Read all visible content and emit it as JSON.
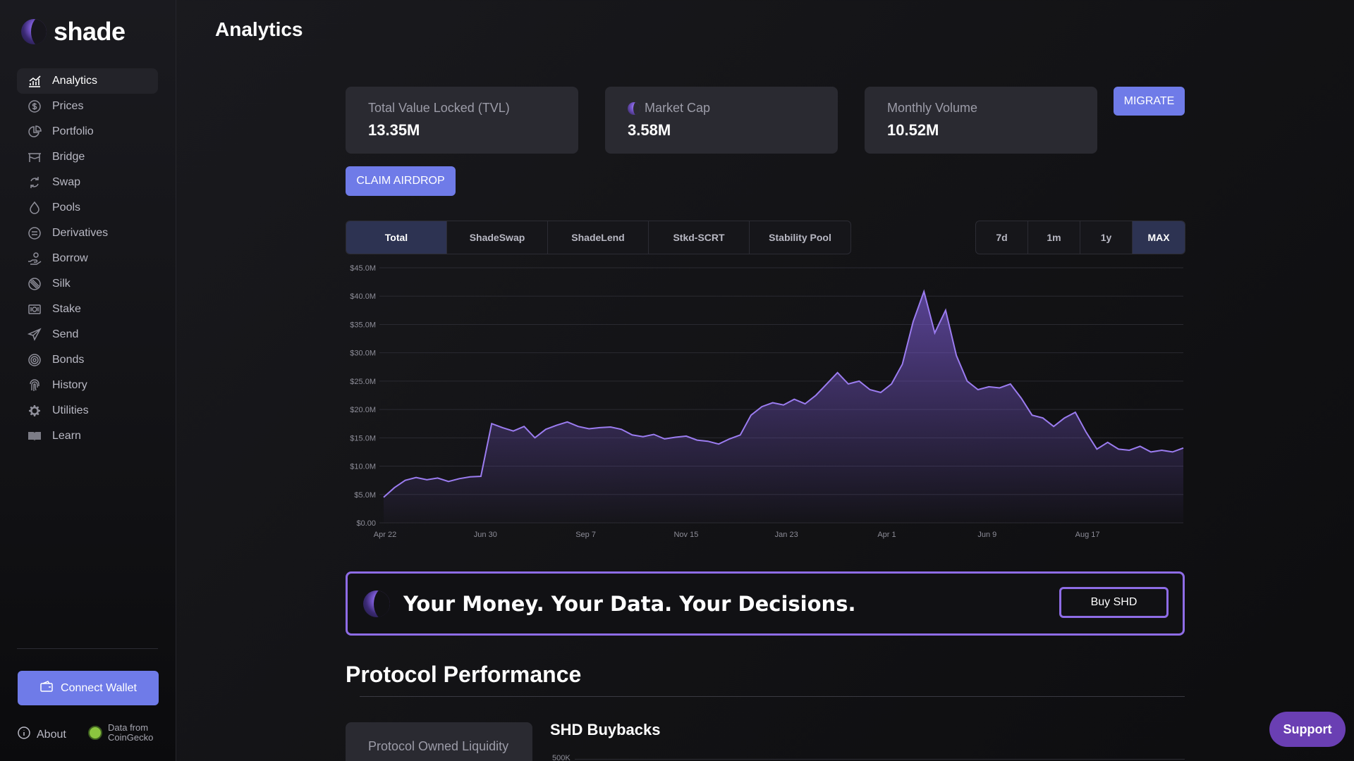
{
  "app": {
    "name": "shade",
    "page_title": "Analytics"
  },
  "sidebar": {
    "items": [
      {
        "label": "Analytics",
        "icon": "analytics-icon",
        "active": true
      },
      {
        "label": "Prices",
        "icon": "dollar-icon"
      },
      {
        "label": "Portfolio",
        "icon": "pie-chart-icon"
      },
      {
        "label": "Bridge",
        "icon": "bridge-icon"
      },
      {
        "label": "Swap",
        "icon": "swap-icon"
      },
      {
        "label": "Pools",
        "icon": "drop-icon"
      },
      {
        "label": "Derivatives",
        "icon": "derivatives-icon"
      },
      {
        "label": "Borrow",
        "icon": "borrow-icon"
      },
      {
        "label": "Silk",
        "icon": "silk-icon"
      },
      {
        "label": "Stake",
        "icon": "stake-icon"
      },
      {
        "label": "Send",
        "icon": "send-icon"
      },
      {
        "label": "Bonds",
        "icon": "bonds-icon"
      },
      {
        "label": "History",
        "icon": "fingerprint-icon"
      },
      {
        "label": "Utilities",
        "icon": "gear-icon"
      },
      {
        "label": "Learn",
        "icon": "book-icon"
      }
    ],
    "connect_wallet": "Connect Wallet",
    "about": "About",
    "data_from": "Data from",
    "coingecko": "CoinGecko"
  },
  "stats": {
    "tvl_label": "Total Value Locked (TVL)",
    "tvl_value": "13.35M",
    "mcap_label": "Market Cap",
    "mcap_value": "3.58M",
    "volume_label": "Monthly Volume",
    "volume_value": "10.52M"
  },
  "buttons": {
    "migrate": "MIGRATE",
    "claim_airdrop": "CLAIM AIRDROP",
    "buy_shd": "Buy SHD",
    "support": "Support"
  },
  "tabs": [
    "Total",
    "ShadeSwap",
    "ShadeLend",
    "Stkd-SCRT",
    "Stability Pool"
  ],
  "active_tab": "Total",
  "ranges": [
    "7d",
    "1m",
    "1y",
    "MAX"
  ],
  "active_range": "MAX",
  "chart_data": {
    "type": "area",
    "title": "",
    "xlabel": "",
    "ylabel": "",
    "ylim": [
      0,
      45
    ],
    "y_ticks": [
      "$0.00",
      "$5.0M",
      "$10.0M",
      "$15.0M",
      "$20.0M",
      "$25.0M",
      "$30.0M",
      "$35.0M",
      "$40.0M",
      "$45.0M"
    ],
    "x_ticks": [
      "Apr 22",
      "Jun 30",
      "Sep 7",
      "Nov 15",
      "Jan 23",
      "Apr 1",
      "Jun 9",
      "Aug 17"
    ],
    "grid": true,
    "series": [
      {
        "color": "#9b7cf0",
        "values": [
          4.5,
          6.2,
          7.5,
          8.0,
          7.6,
          7.9,
          7.3,
          7.8,
          8.1,
          8.2,
          17.5,
          16.8,
          16.2,
          17.0,
          15.0,
          16.5,
          17.2,
          17.8,
          17.0,
          16.6,
          16.8,
          16.9,
          16.5,
          15.5,
          15.2,
          15.6,
          14.8,
          15.1,
          15.3,
          14.6,
          14.4,
          13.9,
          14.8,
          15.5,
          19.0,
          20.5,
          21.2,
          20.8,
          21.8,
          21.0,
          22.5,
          24.5,
          26.5,
          24.5,
          25.0,
          23.5,
          23.0,
          24.5,
          28.0,
          35.5,
          40.8,
          33.5,
          37.5,
          29.5,
          25.0,
          23.5,
          24.0,
          23.8,
          24.5,
          22.0,
          19.0,
          18.5,
          17.0,
          18.5,
          19.5,
          16.0,
          13.0,
          14.2,
          13.0,
          12.8,
          13.5,
          12.5,
          12.8,
          12.5,
          13.2
        ]
      }
    ]
  },
  "banner": {
    "text": "Your Money. Your Data. Your Decisions."
  },
  "performance": {
    "title": "Protocol Performance",
    "pol_label": "Protocol Owned Liquidity",
    "buybacks_title": "SHD Buybacks",
    "buybacks_tick": "500K"
  },
  "colors": {
    "accent": "#6f7be8",
    "purple": "#8e6ce6",
    "line": "#9b7cf0",
    "support": "#6a3fb3"
  }
}
